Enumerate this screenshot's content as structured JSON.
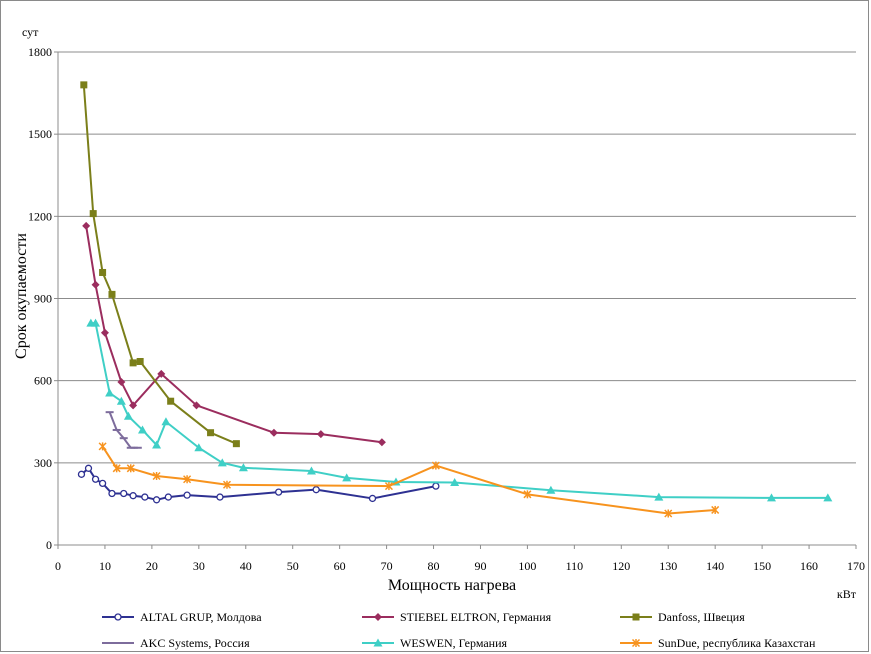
{
  "chart_data": {
    "type": "line",
    "title": "",
    "xlabel": "Мощность нагрева",
    "ylabel": "Срок окупаемости",
    "x_unit": "кВт",
    "y_unit": "сут",
    "xlim": [
      0,
      170
    ],
    "ylim": [
      0,
      1800
    ],
    "x_ticks": [
      0,
      10,
      20,
      30,
      40,
      50,
      60,
      70,
      80,
      90,
      100,
      110,
      120,
      130,
      140,
      150,
      160,
      170
    ],
    "y_ticks": [
      0,
      300,
      600,
      900,
      1200,
      1500,
      1800
    ],
    "grid": "horizontal",
    "legend_position": "bottom",
    "series": [
      {
        "name": "ALTAL GRUP, Молдова",
        "color": "#2e3192",
        "marker": "circle-open",
        "points": [
          [
            5,
            258
          ],
          [
            6.5,
            280
          ],
          [
            8,
            240
          ],
          [
            9.5,
            225
          ],
          [
            11.5,
            188
          ],
          [
            14,
            188
          ],
          [
            16,
            180
          ],
          [
            18.5,
            175
          ],
          [
            21,
            165
          ],
          [
            23.5,
            175
          ],
          [
            27.5,
            182
          ],
          [
            34.5,
            175
          ],
          [
            47,
            193
          ],
          [
            55,
            202
          ],
          [
            67,
            170
          ],
          [
            80.5,
            215
          ]
        ]
      },
      {
        "name": "STIEBEL ELTRON, Германия",
        "color": "#9b2d5e",
        "marker": "diamond",
        "points": [
          [
            6,
            1165
          ],
          [
            8,
            950
          ],
          [
            10,
            775
          ],
          [
            13.5,
            595
          ],
          [
            16,
            510
          ],
          [
            22,
            625
          ],
          [
            29.5,
            510
          ],
          [
            46,
            410
          ],
          [
            56,
            405
          ],
          [
            69,
            375
          ]
        ]
      },
      {
        "name": "Danfoss, Швеция",
        "color": "#7b7f1a",
        "marker": "square",
        "points": [
          [
            5.5,
            1680
          ],
          [
            7.5,
            1210
          ],
          [
            9.5,
            995
          ],
          [
            11.5,
            915
          ],
          [
            16,
            665
          ],
          [
            17.5,
            670
          ],
          [
            24,
            525
          ],
          [
            32.5,
            410
          ],
          [
            38,
            370
          ]
        ]
      },
      {
        "name": "AKC Systems, Россия",
        "color": "#7d6c9c",
        "marker": "dash",
        "points": [
          [
            11,
            485
          ],
          [
            12.5,
            420
          ],
          [
            14,
            390
          ],
          [
            15.5,
            355
          ],
          [
            17,
            355
          ]
        ]
      },
      {
        "name": "WESWEN, Германия",
        "color": "#3fcfc6",
        "marker": "triangle",
        "points": [
          [
            7,
            810
          ],
          [
            8,
            810
          ],
          [
            11,
            555
          ],
          [
            13.5,
            525
          ],
          [
            15,
            470
          ],
          [
            18,
            420
          ],
          [
            21,
            365
          ],
          [
            23,
            450
          ],
          [
            30,
            355
          ],
          [
            35,
            300
          ],
          [
            39.5,
            282
          ],
          [
            54,
            270
          ],
          [
            61.5,
            245
          ],
          [
            72,
            230
          ],
          [
            84.5,
            228
          ],
          [
            105,
            200
          ],
          [
            128,
            175
          ],
          [
            152,
            172
          ],
          [
            164,
            172
          ]
        ]
      },
      {
        "name": "SunDue, республика Казахстан",
        "color": "#f7931e",
        "marker": "star",
        "points": [
          [
            9.5,
            360
          ],
          [
            12.5,
            280
          ],
          [
            15.5,
            280
          ],
          [
            21,
            252
          ],
          [
            27.5,
            240
          ],
          [
            36,
            220
          ],
          [
            70.5,
            215
          ],
          [
            80.5,
            290
          ],
          [
            100,
            185
          ],
          [
            130,
            115
          ],
          [
            140,
            128
          ]
        ]
      }
    ]
  }
}
